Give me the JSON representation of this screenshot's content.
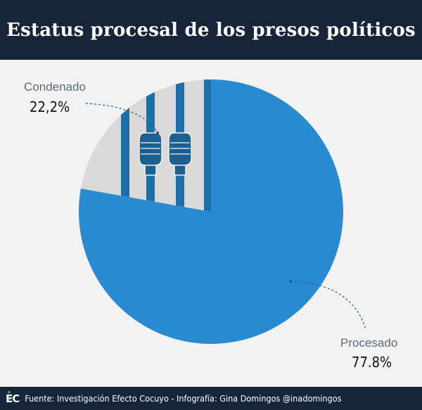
{
  "header": {
    "title": "Estatus procesal de los presos políticos"
  },
  "chart_data": {
    "type": "pie",
    "title": "Estatus procesal de los presos políticos",
    "slices": [
      {
        "name": "Condenado",
        "value_label": "22,2%",
        "value": 22.2,
        "color": "#d9d9d9"
      },
      {
        "name": "Procesado",
        "value_label": "77.8%",
        "value": 77.8,
        "color": "#2a8ad0"
      }
    ],
    "legend": "inline-labels"
  },
  "colors": {
    "header_bg": "#16253a",
    "background": "#f2f2f2",
    "bar_color": "#1e6fa8",
    "hand_color": "#1d5f8f"
  },
  "icons": {
    "jail_icon": "jail-bars-hands-icon",
    "logo_icon": "ec-logo-icon"
  },
  "footer": {
    "logo": "EC",
    "source": "Fuente: Investigación Efecto Cocuyo - Infografía: Gina Domingos @inadomingos"
  }
}
